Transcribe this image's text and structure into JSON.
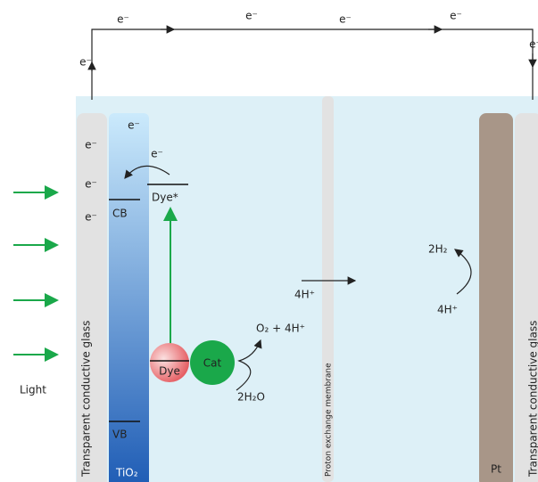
{
  "electrons": {
    "circuit": [
      "e⁻",
      "e⁻",
      "e⁻",
      "e⁻",
      "e⁻",
      "e⁻"
    ],
    "glass": [
      "e⁻",
      "e⁻",
      "e⁻"
    ],
    "semiconductor": "e⁻",
    "dye": "e⁻"
  },
  "light": "Light",
  "anode": {
    "glass": "Transparent conductive glass",
    "semiconductor": "TiO₂",
    "conduction_band": "CB",
    "valence_band": "VB"
  },
  "dye": {
    "excited": "Dye*",
    "ground": "Dye"
  },
  "catalyst": {
    "label": "Cat",
    "product": "O₂ + 4H⁺",
    "reactant": "2H₂O"
  },
  "membrane": {
    "label": "Proton exchange membrane",
    "proton_flow": "4H⁺"
  },
  "cathode": {
    "metal": "Pt",
    "product": "2H₂",
    "reactant": "4H⁺",
    "glass": "Transparent conductive glass"
  }
}
